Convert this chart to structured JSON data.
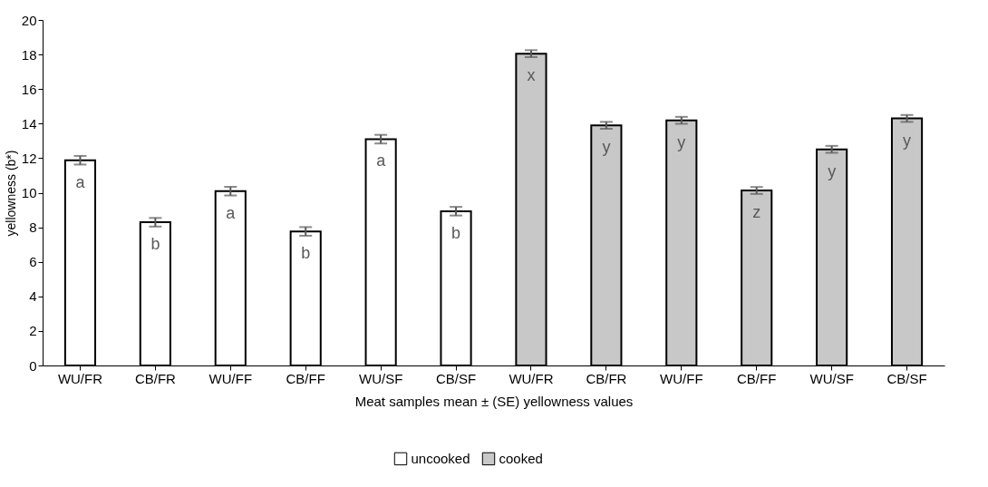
{
  "chart_data": {
    "type": "bar",
    "xlabel": "Meat samples mean ± (SE) yellowness values",
    "ylabel": "yellowness (b*)",
    "categories": [
      "WU/FR",
      "CB/FR",
      "WU/FF",
      "CB/FF",
      "WU/SF",
      "CB/SF",
      "WU/FR",
      "CB/FR",
      "WU/FF",
      "CB/FF",
      "WU/SF",
      "CB/SF"
    ],
    "series": [
      {
        "name": "uncooked",
        "color": "#ffffff",
        "values": [
          11.88,
          8.29,
          10.09,
          7.76,
          13.1,
          8.93,
          null,
          null,
          null,
          null,
          null,
          null
        ],
        "errors": [
          0.25,
          0.25,
          0.25,
          0.25,
          0.25,
          0.25,
          null,
          null,
          null,
          null,
          null,
          null
        ],
        "value_labels": [
          "a",
          "b",
          "a",
          "b",
          "a",
          "b",
          null,
          null,
          null,
          null,
          null,
          null
        ]
      },
      {
        "name": "cooked",
        "color": "#c8c8c8",
        "values": [
          null,
          null,
          null,
          null,
          null,
          null,
          18.05,
          13.9,
          14.19,
          10.13,
          12.51,
          14.3
        ],
        "errors": [
          null,
          null,
          null,
          null,
          null,
          null,
          0.2,
          0.2,
          0.2,
          0.2,
          0.2,
          0.2
        ],
        "value_labels": [
          null,
          null,
          null,
          null,
          null,
          null,
          "x",
          "y",
          "y",
          "z",
          "y",
          "y"
        ]
      }
    ],
    "ylim": [
      0,
      20
    ],
    "yticks": [
      0,
      2,
      4,
      6,
      8,
      10,
      12,
      14,
      16,
      18,
      20
    ],
    "grid": false,
    "legend": "bottom"
  }
}
